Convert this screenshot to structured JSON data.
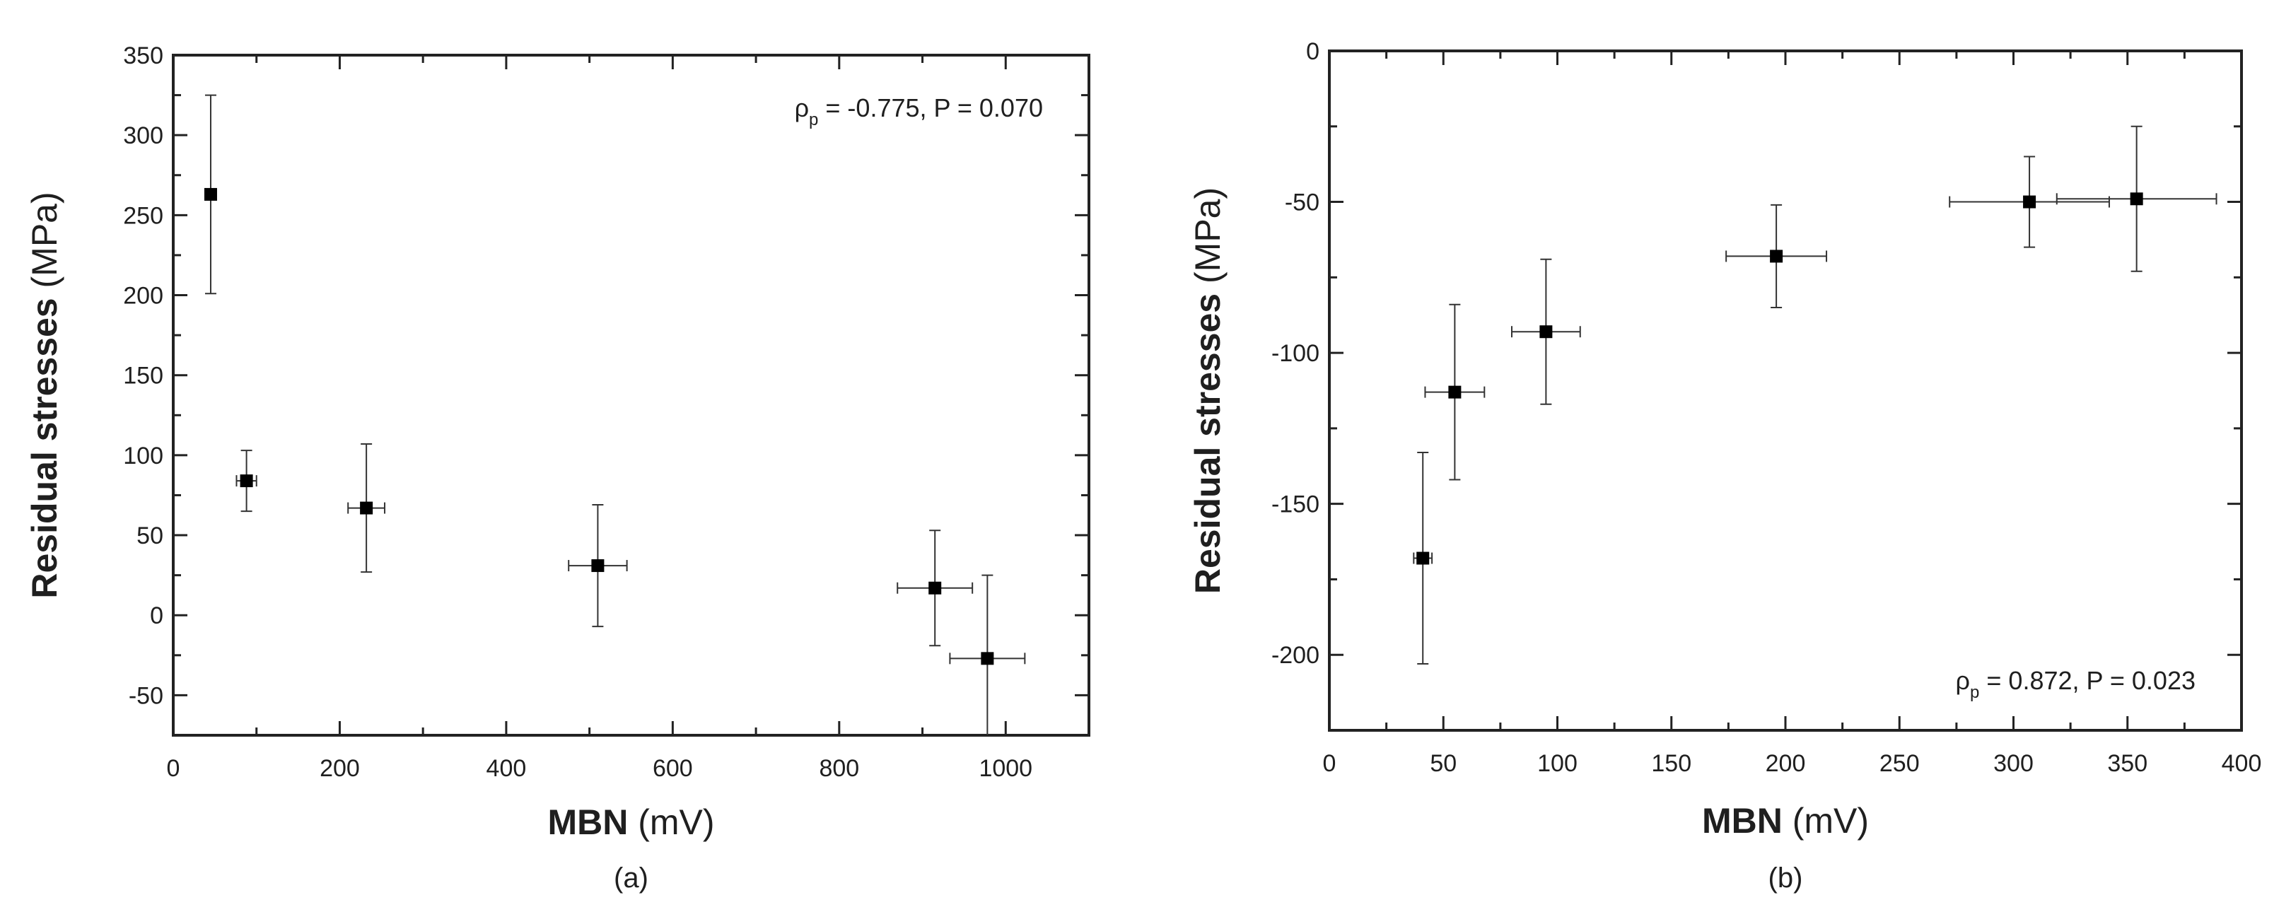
{
  "chart_data": [
    {
      "type": "scatter",
      "panel_label": "(a)",
      "xlabel": {
        "bold": "MBN",
        "unit": " (mV)"
      },
      "ylabel": {
        "bold": "Residual stresses",
        "unit": " (MPa)"
      },
      "xlim": [
        0,
        1100
      ],
      "ylim": [
        -75,
        350
      ],
      "xticks": [
        0,
        200,
        400,
        600,
        800,
        1000
      ],
      "yticks": [
        -50,
        0,
        50,
        100,
        150,
        200,
        250,
        300,
        350
      ],
      "grid": false,
      "annotation": {
        "rho": "ρ",
        "sub": "p",
        "text": " = -0.775, P = 0.070",
        "placement": "top-right"
      },
      "series": [
        {
          "points": [
            {
              "x": 45,
              "y": 263,
              "xerr": 0,
              "yerr": 62
            },
            {
              "x": 88,
              "y": 84,
              "xerr": 12,
              "yerr": 19
            },
            {
              "x": 232,
              "y": 67,
              "xerr": 22,
              "yerr": 40
            },
            {
              "x": 510,
              "y": 31,
              "xerr": 35,
              "yerr": 38
            },
            {
              "x": 915,
              "y": 17,
              "xerr": 45,
              "yerr": 36
            },
            {
              "x": 978,
              "y": -27,
              "xerr": 45,
              "yerr": 52
            }
          ]
        }
      ]
    },
    {
      "type": "scatter",
      "panel_label": "(b)",
      "xlabel": {
        "bold": "MBN",
        "unit": " (mV)"
      },
      "ylabel": {
        "bold": "Residual stresses",
        "unit": " (MPa)"
      },
      "xlim": [
        0,
        400
      ],
      "ylim": [
        -225,
        0
      ],
      "xticks": [
        0,
        50,
        100,
        150,
        200,
        250,
        300,
        350,
        400
      ],
      "yticks": [
        -200,
        -150,
        -100,
        -50,
        0
      ],
      "grid": false,
      "annotation": {
        "rho": "ρ",
        "sub": "p",
        "text": " = 0.872, P = 0.023",
        "placement": "bottom-right"
      },
      "series": [
        {
          "points": [
            {
              "x": 41,
              "y": -168,
              "xerr": 4,
              "yerr": 35
            },
            {
              "x": 55,
              "y": -113,
              "xerr": 13,
              "yerr": 29
            },
            {
              "x": 95,
              "y": -93,
              "xerr": 15,
              "yerr": 24
            },
            {
              "x": 196,
              "y": -68,
              "xerr": 22,
              "yerr": 17
            },
            {
              "x": 307,
              "y": -50,
              "xerr": 35,
              "yerr": 15
            },
            {
              "x": 354,
              "y": -49,
              "xerr": 35,
              "yerr": 24
            }
          ]
        }
      ]
    }
  ]
}
